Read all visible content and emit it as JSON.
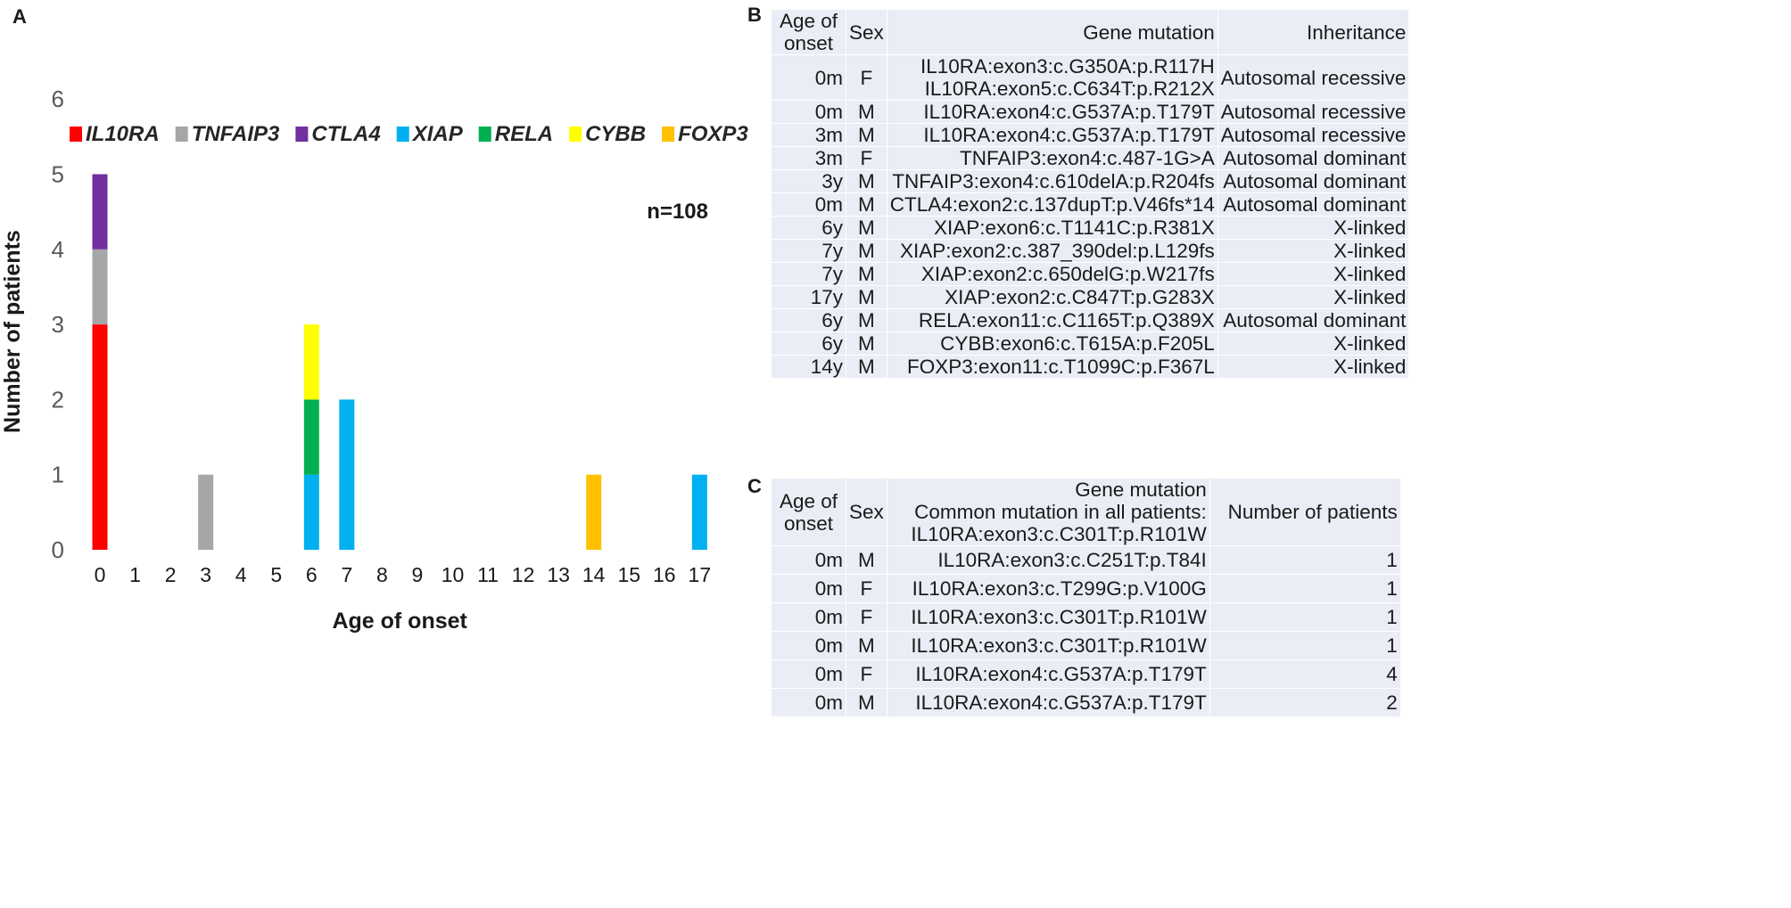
{
  "panels": {
    "a": "A",
    "b": "B",
    "c": "C"
  },
  "chart_data": {
    "type": "bar",
    "stacked": true,
    "categories": [
      "0",
      "1",
      "2",
      "3",
      "4",
      "5",
      "6",
      "7",
      "8",
      "9",
      "10",
      "11",
      "12",
      "13",
      "14",
      "15",
      "16",
      "17"
    ],
    "series": [
      {
        "name": "IL10RA",
        "color": "#ff0000",
        "values": [
          3,
          0,
          0,
          0,
          0,
          0,
          0,
          0,
          0,
          0,
          0,
          0,
          0,
          0,
          0,
          0,
          0,
          0
        ]
      },
      {
        "name": "TNFAIP3",
        "color": "#a6a6a6",
        "values": [
          1,
          0,
          0,
          1,
          0,
          0,
          0,
          0,
          0,
          0,
          0,
          0,
          0,
          0,
          0,
          0,
          0,
          0
        ]
      },
      {
        "name": "CTLA4",
        "color": "#7030a0",
        "values": [
          1,
          0,
          0,
          0,
          0,
          0,
          0,
          0,
          0,
          0,
          0,
          0,
          0,
          0,
          0,
          0,
          0,
          0
        ]
      },
      {
        "name": "XIAP",
        "color": "#00b0f0",
        "values": [
          0,
          0,
          0,
          0,
          0,
          0,
          1,
          2,
          0,
          0,
          0,
          0,
          0,
          0,
          0,
          0,
          0,
          1
        ]
      },
      {
        "name": "RELA",
        "color": "#00b050",
        "values": [
          0,
          0,
          0,
          0,
          0,
          0,
          1,
          0,
          0,
          0,
          0,
          0,
          0,
          0,
          0,
          0,
          0,
          0
        ]
      },
      {
        "name": "CYBB",
        "color": "#ffff00",
        "values": [
          0,
          0,
          0,
          0,
          0,
          0,
          1,
          0,
          0,
          0,
          0,
          0,
          0,
          0,
          0,
          0,
          0,
          0
        ]
      },
      {
        "name": "FOXP3",
        "color": "#ffc000",
        "values": [
          0,
          0,
          0,
          0,
          0,
          0,
          0,
          0,
          0,
          0,
          0,
          0,
          0,
          0,
          1,
          0,
          0,
          0
        ]
      }
    ],
    "xlabel": "Age of onset",
    "ylabel": "Number of patients",
    "ylim": [
      0,
      6
    ],
    "yticks": [
      0,
      1,
      2,
      3,
      4,
      5,
      6
    ],
    "annotation": "n=108",
    "legend_position": "top"
  },
  "table_b": {
    "headers": {
      "age": [
        "Age of",
        "onset"
      ],
      "sex": "Sex",
      "gene": "Gene mutation",
      "inheritance": "Inheritance"
    },
    "rows": [
      {
        "age": "0m",
        "sex": "F",
        "gene": [
          "IL10RA:exon3:c.G350A:p.R117H",
          "IL10RA:exon5:c.C634T:p.R212X"
        ],
        "inheritance": "Autosomal recessive"
      },
      {
        "age": "0m",
        "sex": "M",
        "gene": "IL10RA:exon4:c.G537A:p.T179T",
        "inheritance": "Autosomal recessive"
      },
      {
        "age": "3m",
        "sex": "M",
        "gene": "IL10RA:exon4:c.G537A:p.T179T",
        "inheritance": "Autosomal recessive"
      },
      {
        "age": "3m",
        "sex": "F",
        "gene": "TNFAIP3:exon4:c.487-1G>A",
        "inheritance": "Autosomal dominant"
      },
      {
        "age": "3y",
        "sex": "M",
        "gene": "TNFAIP3:exon4:c.610delA:p.R204fs",
        "inheritance": "Autosomal dominant"
      },
      {
        "age": "0m",
        "sex": "M",
        "gene": "CTLA4:exon2:c.137dupT:p.V46fs*14",
        "inheritance": "Autosomal dominant"
      },
      {
        "age": "6y",
        "sex": "M",
        "gene": "XIAP:exon6:c.T1141C:p.R381X",
        "inheritance": "X-linked"
      },
      {
        "age": "7y",
        "sex": "M",
        "gene": "XIAP:exon2:c.387_390del:p.L129fs",
        "inheritance": "X-linked"
      },
      {
        "age": "7y",
        "sex": "M",
        "gene": "XIAP:exon2:c.650delG:p.W217fs",
        "inheritance": "X-linked"
      },
      {
        "age": "17y",
        "sex": "M",
        "gene": "XIAP:exon2:c.C847T:p.G283X",
        "inheritance": "X-linked"
      },
      {
        "age": "6y",
        "sex": "M",
        "gene": "RELA:exon11:c.C1165T:p.Q389X",
        "inheritance": "Autosomal dominant"
      },
      {
        "age": "6y",
        "sex": "M",
        "gene": "CYBB:exon6:c.T615A:p.F205L",
        "inheritance": "X-linked"
      },
      {
        "age": "14y",
        "sex": "M",
        "gene": "FOXP3:exon11:c.T1099C:p.F367L",
        "inheritance": "X-linked"
      }
    ]
  },
  "table_c": {
    "headers": {
      "age": [
        "Age of",
        "onset"
      ],
      "sex": "Sex",
      "gene": [
        "Gene mutation",
        "Common mutation in all patients:",
        "IL10RA:exon3:c.C301T:p.R101W"
      ],
      "count": "Number of patients"
    },
    "rows": [
      {
        "age": "0m",
        "sex": "M",
        "gene": "IL10RA:exon3:c.C251T:p.T84I",
        "count": "1"
      },
      {
        "age": "0m",
        "sex": "F",
        "gene": "IL10RA:exon3:c.T299G:p.V100G",
        "count": "1"
      },
      {
        "age": "0m",
        "sex": "F",
        "gene": "IL10RA:exon3:c.C301T:p.R101W",
        "count": "1"
      },
      {
        "age": "0m",
        "sex": "M",
        "gene": "IL10RA:exon3:c.C301T:p.R101W",
        "count": "1"
      },
      {
        "age": "0m",
        "sex": "F",
        "gene": "IL10RA:exon4:c.G537A:p.T179T",
        "count": "4"
      },
      {
        "age": "0m",
        "sex": "M",
        "gene": "IL10RA:exon4:c.G537A:p.T179T",
        "count": "2"
      }
    ]
  }
}
